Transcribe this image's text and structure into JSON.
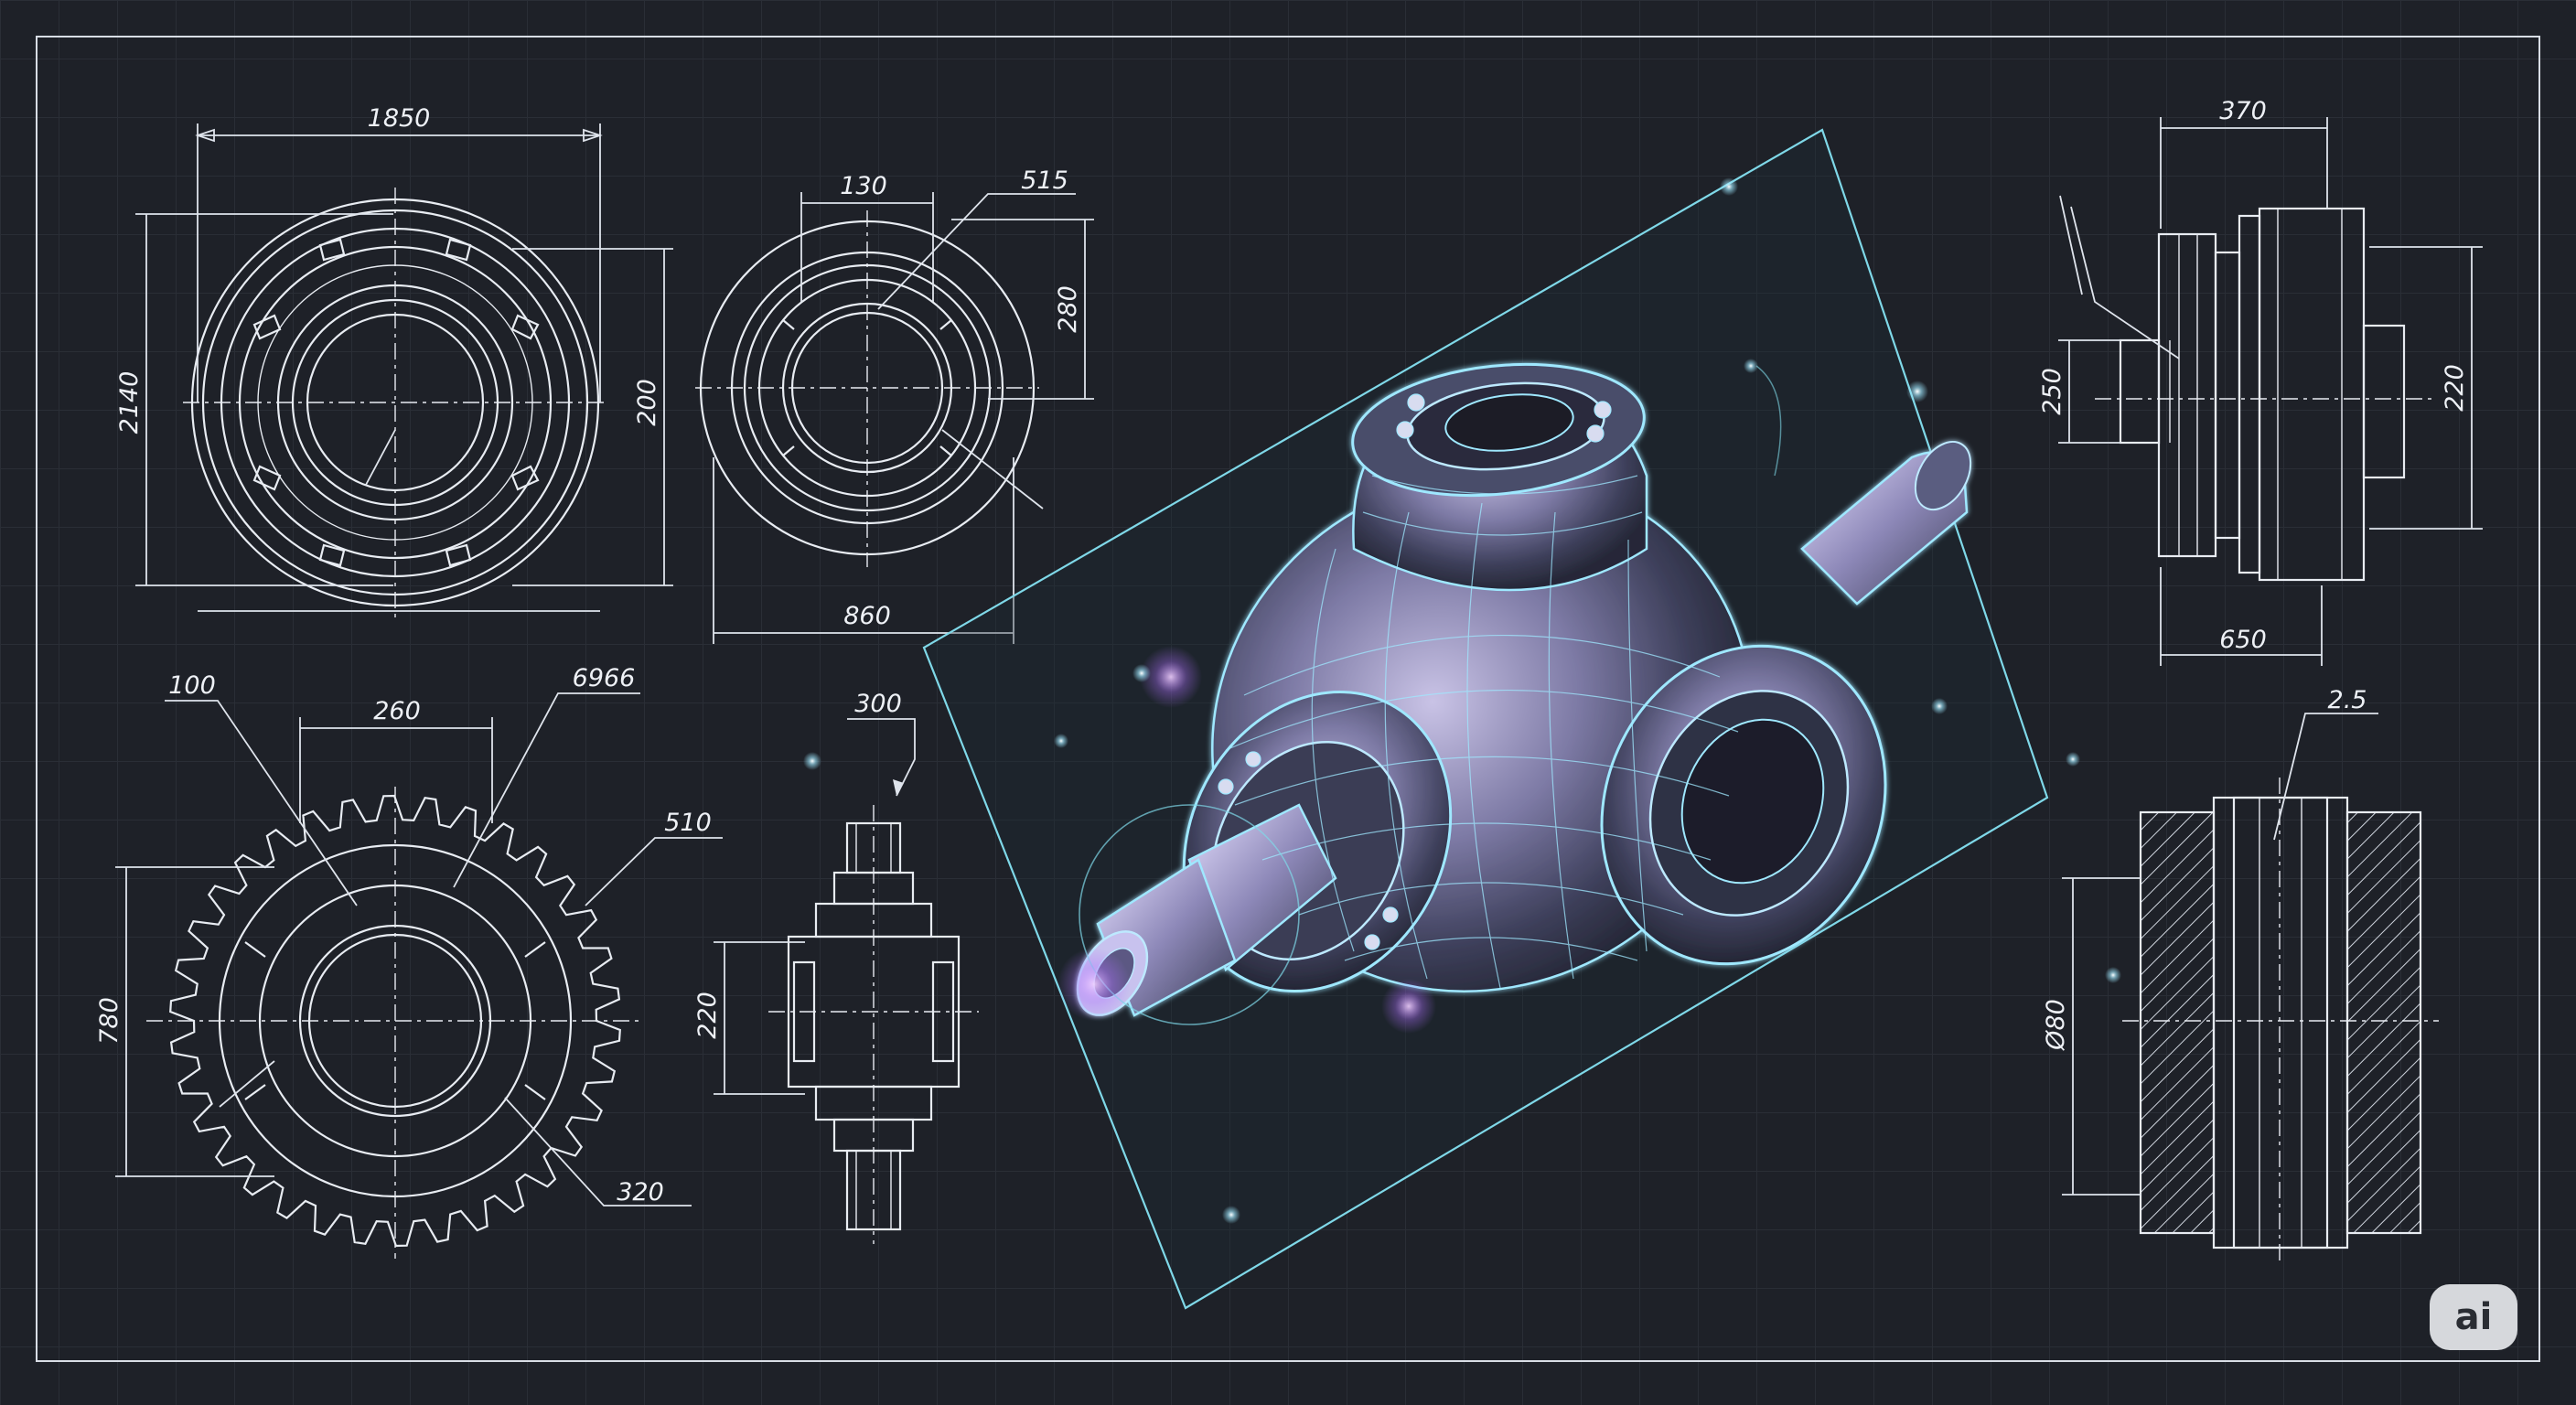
{
  "colors": {
    "background": "#1e2128",
    "grid": "#2a2e36",
    "line": "#e8ecf2",
    "glow": "#7fe3ff",
    "accent_purple": "#c58cff"
  },
  "dimensions": {
    "ring_width": "1850",
    "ring_height": "2140",
    "ring_inner": "200",
    "small_width": "130",
    "small_leader": "515",
    "small_height": "280",
    "small_bottom": "860",
    "gear_left_leader": "100",
    "gear_pitch": "260",
    "gear_right_leader": "6966",
    "gear_side_leader": "510",
    "gear_height": "780",
    "gear_bottom_leader": "320",
    "shaft_top": "300",
    "shaft_height": "220",
    "side_width": "370",
    "side_left": "250",
    "side_right": "220",
    "side_bottom": "650",
    "section_leader": "2.5",
    "section_height": "Ø80"
  },
  "badge": {
    "label": "ai"
  },
  "icons": {
    "badge": "ai-badge-icon"
  }
}
